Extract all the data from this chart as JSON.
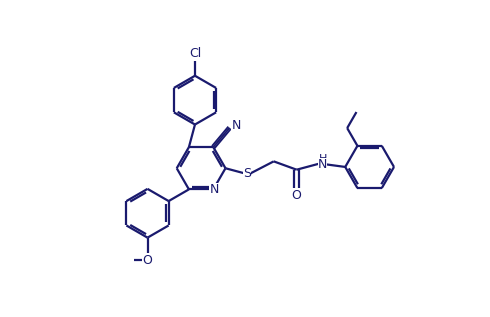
{
  "bg_color": "#ffffff",
  "line_color": "#1a1a6e",
  "line_width": 1.6,
  "fig_width": 4.9,
  "fig_height": 3.17,
  "dpi": 100,
  "font_size": 8.5,
  "xlim": [
    0,
    10
  ],
  "ylim": [
    0,
    6.5
  ]
}
